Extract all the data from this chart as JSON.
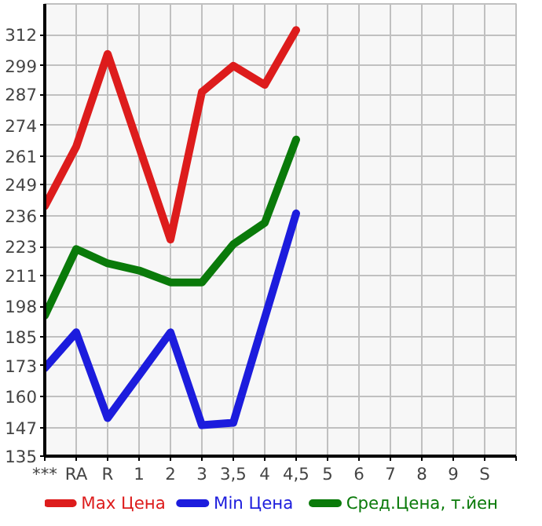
{
  "chart_data": {
    "type": "line",
    "categories": [
      "***",
      "RA",
      "R",
      "1",
      "2",
      "3",
      "3,5",
      "4",
      "4,5",
      "5",
      "6",
      "7",
      "8",
      "9",
      "S"
    ],
    "series": [
      {
        "name": "Max Цена",
        "color": "#dd1c1c",
        "values": [
          240,
          265,
          304,
          265,
          226,
          288,
          299,
          291,
          314,
          null,
          null,
          null,
          null,
          null,
          null
        ]
      },
      {
        "name": "Min Цена",
        "color": "#1c1cdd",
        "values": [
          172,
          187,
          151,
          169,
          187,
          148,
          149,
          193,
          237,
          null,
          null,
          null,
          null,
          null,
          null
        ]
      },
      {
        "name": "Сред.Цена, т.йен",
        "color": "#0a7a0a",
        "values": [
          194,
          222,
          216,
          213,
          208,
          208,
          224,
          233,
          268,
          null,
          null,
          null,
          null,
          null,
          null
        ]
      }
    ],
    "ylim": [
      135,
      325
    ],
    "yticks": [
      135,
      147,
      160,
      173,
      185,
      198,
      211,
      223,
      236,
      249,
      261,
      274,
      287,
      299,
      312
    ],
    "grid": true,
    "legend": "bottom",
    "marker": "none",
    "line_style": "solid"
  }
}
